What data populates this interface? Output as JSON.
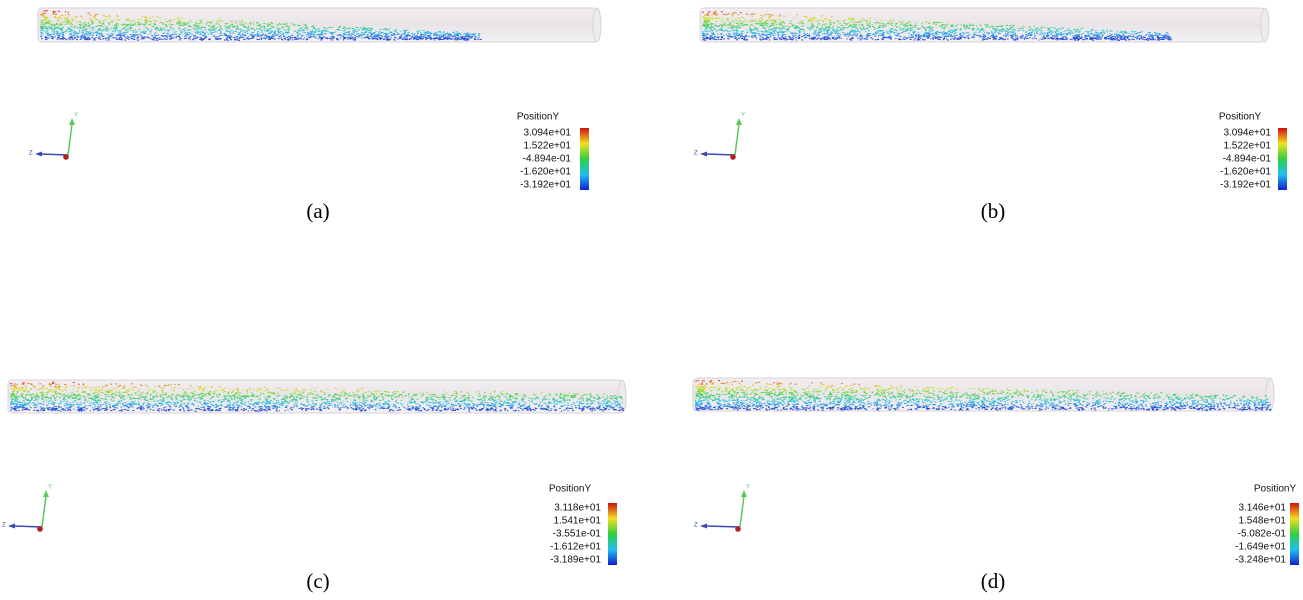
{
  "panels": [
    {
      "caption": "(a)",
      "legend_title": "PositionY",
      "legend_labels": [
        "3.094e+01",
        "1.522e+01",
        "-4.894e-01",
        "-1.620e+01",
        "-3.192e+01"
      ],
      "axis_y": "Y",
      "axis_z": "Z"
    },
    {
      "caption": "(b)",
      "legend_title": "PositionY",
      "legend_labels": [
        "3.094e+01",
        "1.522e+01",
        "-4.894e-01",
        "-1.620e+01",
        "-3.192e+01"
      ],
      "axis_y": "Y",
      "axis_z": "Z"
    },
    {
      "caption": "(c)",
      "legend_title": "PositionY",
      "legend_labels": [
        "3.118e+01",
        "1.541e+01",
        "-3.551e-01",
        "-1.612e+01",
        "-3.189e+01"
      ],
      "axis_y": "Y",
      "axis_z": "Z"
    },
    {
      "caption": "(d)",
      "legend_title": "PositionY",
      "legend_labels": [
        "3.146e+01",
        "1.548e+01",
        "-5.082e-01",
        "-1.649e+01",
        "-3.248e+01"
      ],
      "axis_y": "Y",
      "axis_z": "Z"
    }
  ]
}
